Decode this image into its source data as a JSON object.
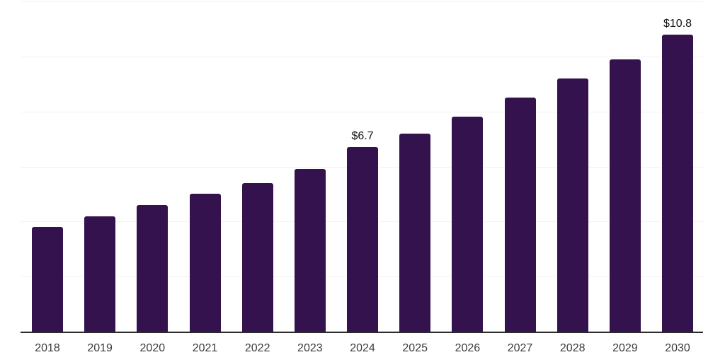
{
  "chart_data": {
    "type": "bar",
    "title": "",
    "xlabel": "",
    "ylabel": "",
    "categories": [
      "2018",
      "2019",
      "2020",
      "2021",
      "2022",
      "2023",
      "2024",
      "2025",
      "2026",
      "2027",
      "2028",
      "2029",
      "2030"
    ],
    "values": [
      3.8,
      4.2,
      4.6,
      5.0,
      5.4,
      5.9,
      6.7,
      7.2,
      7.8,
      8.5,
      9.2,
      9.9,
      10.8
    ],
    "annotations": [
      {
        "category": "2024",
        "text": "$6.7"
      },
      {
        "category": "2030",
        "text": "$10.8"
      }
    ],
    "ylim": [
      0,
      12
    ],
    "grid_step": 2,
    "grid": "horizontal",
    "y_axis_labels_visible": false,
    "legend_position": "none",
    "colors": {
      "bar": "#33124E",
      "gridline": "#F2F2F2",
      "axis_line": "#2B2B2B",
      "tick_label": "#3C3C3C",
      "data_label": "#111111"
    }
  }
}
